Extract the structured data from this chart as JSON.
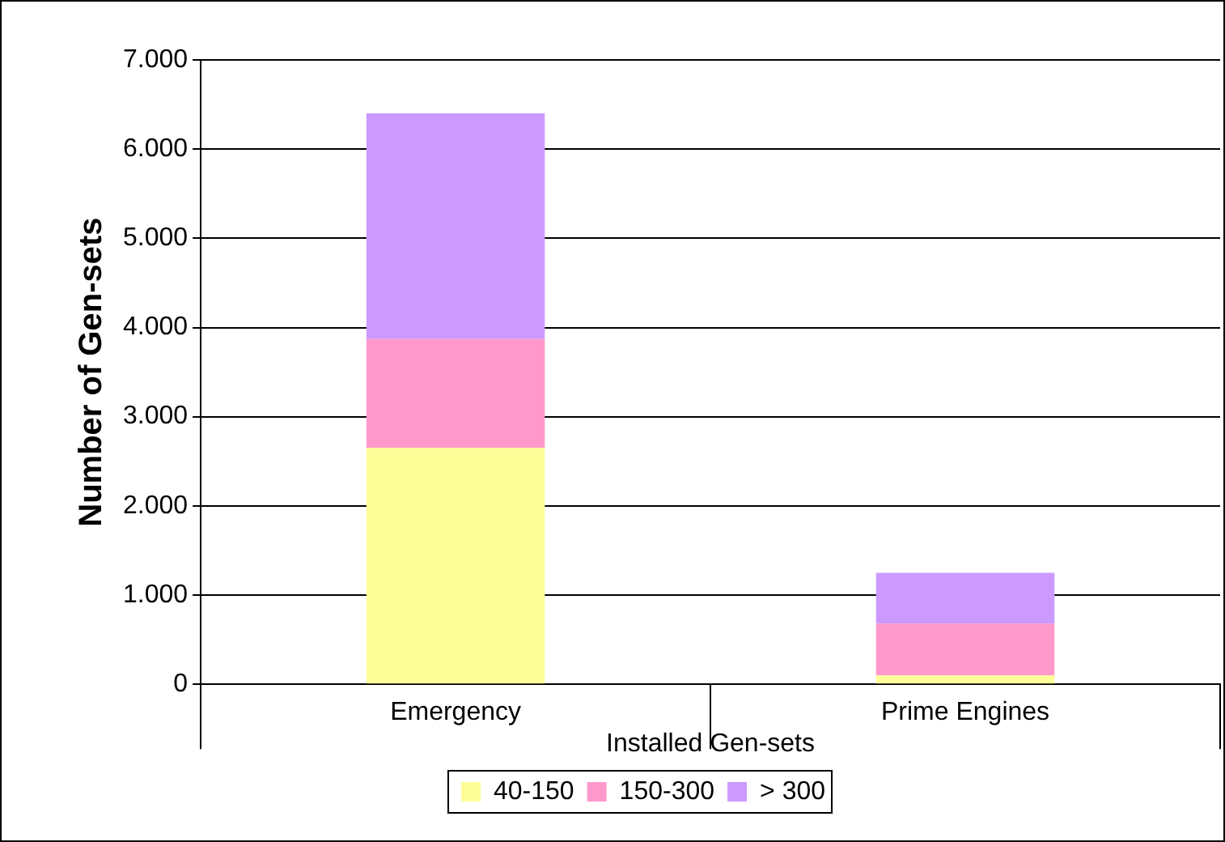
{
  "chart_data": {
    "type": "bar",
    "stacked": true,
    "xlabel": "Installed Gen-sets",
    "ylabel": "Number of Gen-sets",
    "categories": [
      "Emergency",
      "Prime Engines"
    ],
    "series": [
      {
        "name": "40-150",
        "color": "#ffff99",
        "values": [
          2650,
          100
        ]
      },
      {
        "name": "150-300",
        "color": "#ff99cc",
        "values": [
          1220,
          580
        ]
      },
      {
        "name": "> 300",
        "color": "#cc99ff",
        "values": [
          2530,
          570
        ]
      }
    ],
    "ylim": [
      0,
      7000
    ],
    "yticks": [
      {
        "value": 0,
        "label": "0"
      },
      {
        "value": 1000,
        "label": "1.000"
      },
      {
        "value": 2000,
        "label": "2.000"
      },
      {
        "value": 3000,
        "label": "3.000"
      },
      {
        "value": 4000,
        "label": "4.000"
      },
      {
        "value": 5000,
        "label": "5.000"
      },
      {
        "value": 6000,
        "label": "6.000"
      },
      {
        "value": 7000,
        "label": "7.000"
      }
    ],
    "grid": "y",
    "legend": "bottom"
  }
}
